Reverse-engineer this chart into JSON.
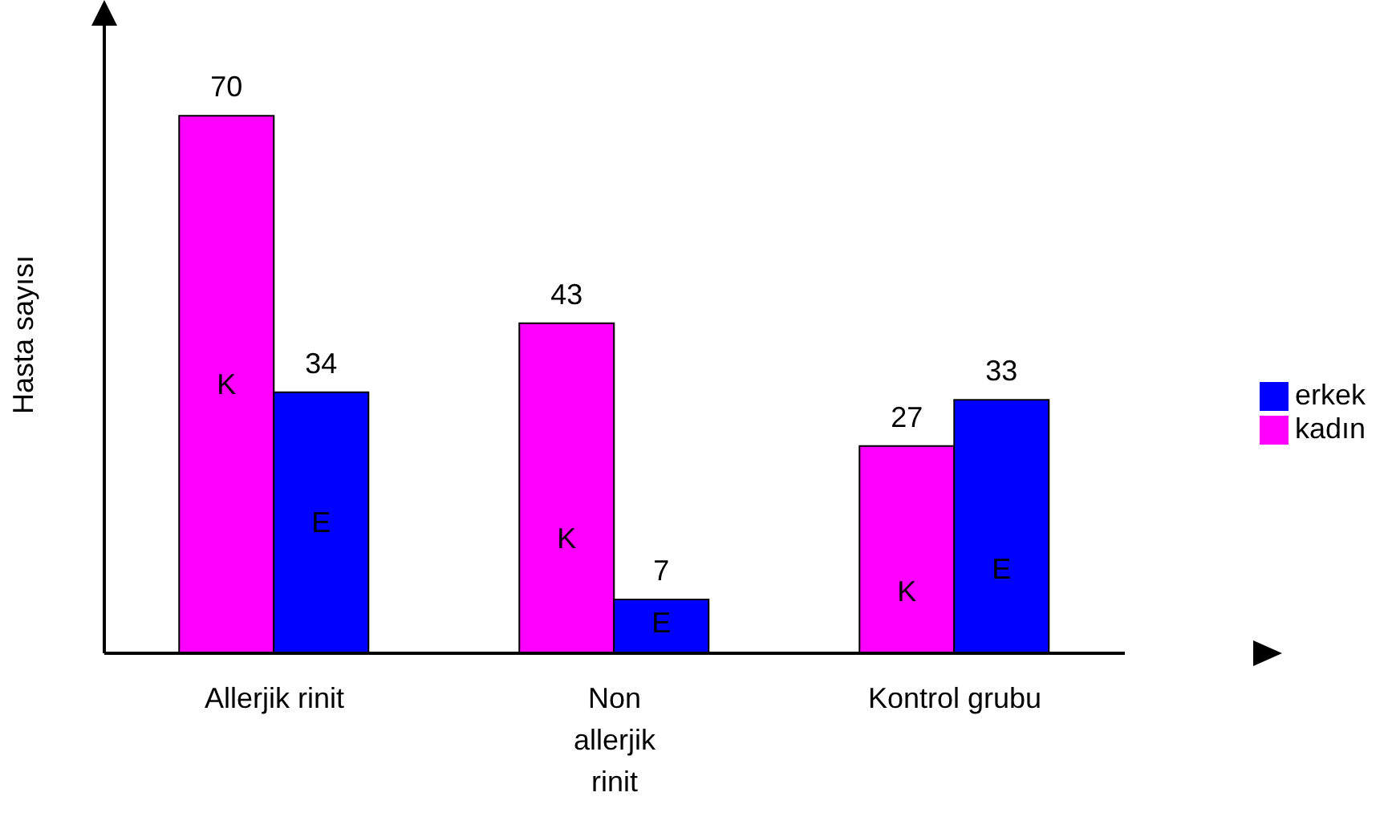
{
  "chart_data": {
    "type": "bar",
    "ylabel": "Hasta sayısı",
    "categories": [
      "Allerjik rinit",
      "Non allerjik rinit",
      "Kontrol grubu"
    ],
    "series": [
      {
        "name": "kadın",
        "color": "#ff00ff",
        "values": [
          70,
          43,
          27
        ]
      },
      {
        "name": "erkek",
        "color": "#0000ff",
        "values": [
          34,
          7,
          33
        ]
      }
    ],
    "ylim": [
      0,
      83
    ],
    "tick_labels": "x",
    "data_labels": true,
    "legend": "right",
    "grid": false,
    "annotations": [
      {
        "text": "K",
        "x": "Allerjik rinit",
        "y": 35
      },
      {
        "text": "E",
        "x": "Allerjik rinit",
        "y": 17
      },
      {
        "text": "K",
        "x": "Non allerjik rinit",
        "y": 15
      },
      {
        "text": "E",
        "x": "Non allerjik rinit",
        "y": 4
      },
      {
        "text": "K",
        "x": "Kontrol grubu",
        "y": 8
      },
      {
        "text": "E",
        "x": "Kontrol grubu",
        "y": 11
      }
    ]
  }
}
